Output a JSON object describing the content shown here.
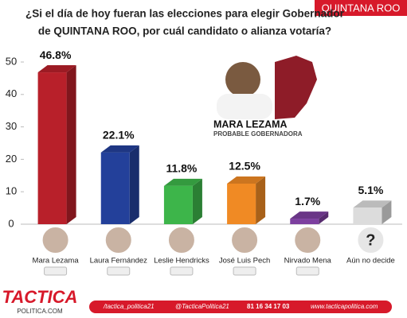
{
  "chart_data": {
    "type": "bar3d",
    "header": "QUINTANA ROO",
    "title_lines": [
      "¿Si el día de hoy fueran las elecciones para elegir Gobernador",
      "de QUINTANA ROO, por cuál candidato o alianza votaría?"
    ],
    "annotation": {
      "name": "MARA LEZAMA",
      "subtitle": "PROBABLE GOBERNADORA"
    },
    "categories": [
      "Mara Lezama",
      "Laura Fernández",
      "Leslie Hendricks",
      "José Luis Pech",
      "Nirvado Mena",
      "Aún no decide"
    ],
    "values": [
      46.8,
      22.1,
      11.8,
      12.5,
      1.7,
      5.1
    ],
    "value_labels": [
      "46.8%",
      "22.1%",
      "11.8%",
      "12.5%",
      "1.7%",
      "5.1%"
    ],
    "colors": [
      "#b8202a",
      "#23409a",
      "#3db54a",
      "#f08a24",
      "#7d3f9f",
      "#dcdcdc"
    ],
    "unknown_icon": "?",
    "ylim": [
      0,
      50
    ],
    "yticks": [
      0,
      10,
      20,
      30,
      40,
      50
    ],
    "footer": {
      "brand": "TACTICA",
      "brand_sub": "POLITICA.COM",
      "instagram": "/tactica_politica21",
      "twitter": "@TacticaPolitica21",
      "phone": "81 16 34 17 03",
      "web": "www.tacticapolitica.com"
    }
  }
}
